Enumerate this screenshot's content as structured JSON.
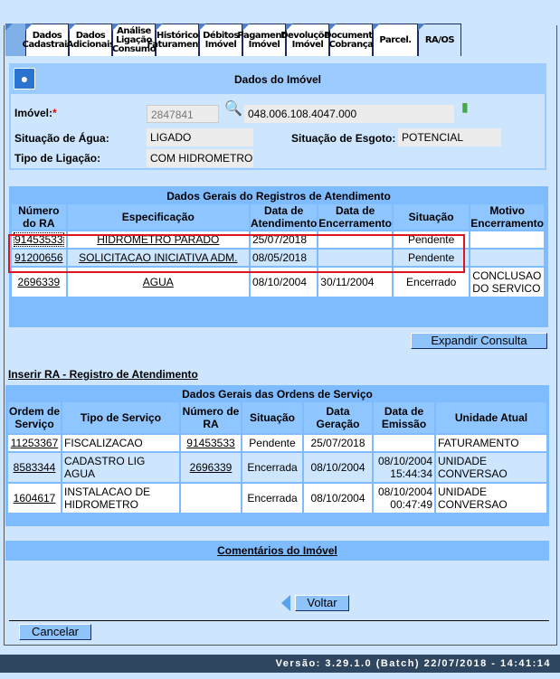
{
  "tabs": [
    "Dados Cadastrais",
    "Dados Adicionais",
    "Análise Ligação Consumo",
    "Histórico Faturamento",
    "Débitos Imóvel",
    "Pagamento Imóvel",
    "Devoluções Imóvel",
    "Documento Cobrança",
    "Parcel.",
    "RA/OS"
  ],
  "active_tab": "RA/OS",
  "imovel": {
    "title": "Dados do Imóvel",
    "imovel_label": "Imóvel:",
    "required_mark": "*",
    "imovel_value": "2847841",
    "inscricao": "048.006.108.4047.000",
    "agua_label": "Situação de Água:",
    "agua_value": "LIGADO",
    "esgoto_label": "Situação de Esgoto:",
    "esgoto_value": "POTENCIAL",
    "ligacao_label": "Tipo de Ligação:",
    "ligacao_value": "COM HIDROMETRO"
  },
  "ra": {
    "title": "Dados Gerais do Registros de Atendimento",
    "headers": [
      "Número do RA",
      "Especificação",
      "Data de Atendimento",
      "Data de Encerramento",
      "Situação",
      "Motivo Encerramento"
    ],
    "rows": [
      [
        "91453533",
        "HIDROMETRO PARADO",
        "25/07/2018",
        "",
        "Pendente",
        ""
      ],
      [
        "91200656",
        "SOLICITACAO INICIATIVA ADM.",
        "08/05/2018",
        "",
        "Pendente",
        ""
      ],
      [
        "2696339",
        "AGUA",
        "08/10/2004",
        "30/11/2004",
        "Encerrado",
        "CONCLUSAO DO SERVICO"
      ]
    ],
    "highlight_color": "#e0141e"
  },
  "expandir": "Expandir Consulta",
  "inserir_ra": "Inserir RA - Registro de Atendimento",
  "os": {
    "title": "Dados Gerais das Ordens de Serviço",
    "headers": [
      "Ordem de Serviço",
      "Tipo de Serviço",
      "Número de RA",
      "Situação",
      "Data Geração",
      "Data de Emissão",
      "Unidade Atual"
    ],
    "rows": [
      [
        "11253367",
        "FISCALIZACAO",
        "91453533",
        "Pendente",
        "25/07/2018",
        "",
        "FATURAMENTO"
      ],
      [
        "8583344",
        "CADASTRO LIG AGUA",
        "2696339",
        "Encerrada",
        "08/10/2004",
        "08/10/2004 15:44:34",
        "UNIDADE CONVERSAO"
      ],
      [
        "1604617",
        "INSTALACAO DE HIDROMETRO",
        "",
        "Encerrada",
        "08/10/2004",
        "08/10/2004 00:47:49",
        "UNIDADE CONVERSAO"
      ]
    ]
  },
  "comentarios": "Comentários do Imóvel",
  "voltar": "Voltar",
  "cancelar": "Cancelar",
  "footer": "Versão: 3.29.1.0 (Batch) 22/07/2018 - 14:41:14"
}
